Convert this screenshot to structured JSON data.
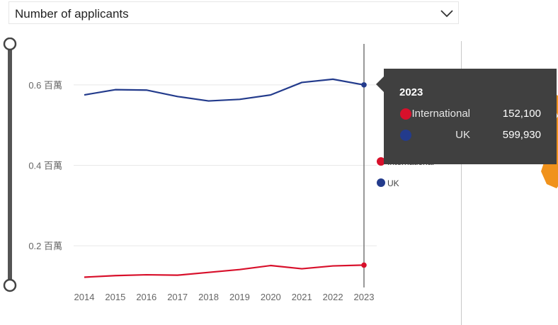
{
  "dropdown": {
    "label": "Number of applicants"
  },
  "colors": {
    "international": "#d8102b",
    "uk": "#233b8c",
    "tooltip_bg": "#404040",
    "accent_orange": "#f0921c"
  },
  "tooltip": {
    "year": "2023",
    "rows": [
      {
        "name": "International",
        "value": "152,100",
        "color": "#d8102b"
      },
      {
        "name": "UK",
        "value": "599,930",
        "color": "#233b8c"
      }
    ]
  },
  "chart_data": {
    "type": "line",
    "x": [
      2014,
      2015,
      2016,
      2017,
      2018,
      2019,
      2020,
      2021,
      2022,
      2023
    ],
    "x_tick_labels": [
      "2014",
      "2015",
      "2016",
      "2017",
      "2018",
      "2019",
      "2020",
      "2021",
      "2022",
      "2023"
    ],
    "series": [
      {
        "name": "UK",
        "color": "#233b8c",
        "values": [
          575000,
          588000,
          587000,
          571000,
          560000,
          564000,
          575000,
          606000,
          614000,
          599930
        ]
      },
      {
        "name": "International",
        "color": "#d8102b",
        "values": [
          122000,
          126000,
          128000,
          127000,
          134000,
          141000,
          151000,
          143000,
          150000,
          152100
        ]
      }
    ],
    "y_ticks": [
      200000,
      400000,
      600000
    ],
    "y_tick_labels": [
      "0.2 百萬",
      "0.4 百萬",
      "0.6 百萬"
    ],
    "ylim": [
      100000,
      700000
    ],
    "grid": true,
    "legend": [
      "International",
      "UK"
    ],
    "legend_position": "right",
    "highlighted_x": 2023
  }
}
